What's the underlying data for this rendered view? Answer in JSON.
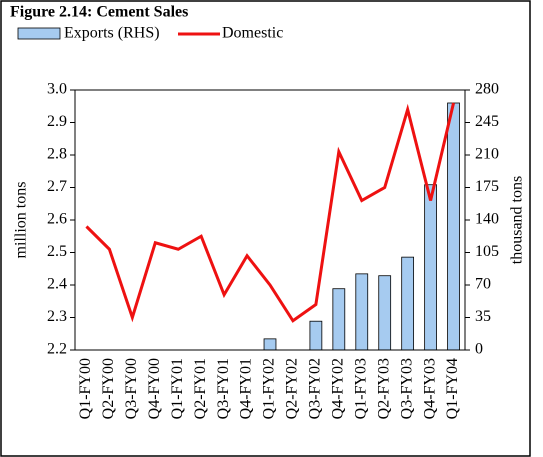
{
  "chart_data": {
    "type": "bar_line",
    "title": "Figure 2.14: Cement Sales",
    "y_label": "million tons",
    "y2_label": "thousand tons",
    "categories": [
      "Q1-FY00",
      "Q2-FY00",
      "Q3-FY00",
      "Q4-FY00",
      "Q1-FY01",
      "Q2-FY01",
      "Q3-FY01",
      "Q4-FY01",
      "Q1-FY02",
      "Q2-FY02",
      "Q3-FY02",
      "Q4-FY02",
      "Q1-FY03",
      "Q2-FY03",
      "Q3-FY03",
      "Q4-FY03",
      "Q1-FY04"
    ],
    "series": [
      {
        "name": "Exports (RHS)",
        "type": "bar",
        "axis": "y2",
        "color": "#a6cbf0",
        "values": [
          0,
          0,
          0,
          0,
          0,
          0,
          0,
          0,
          12,
          0,
          31,
          66,
          82,
          80,
          100,
          178,
          266
        ]
      },
      {
        "name": "Domestic",
        "type": "line",
        "color": "#ee1111",
        "values": [
          2.58,
          2.51,
          2.3,
          2.53,
          2.51,
          2.55,
          2.37,
          2.49,
          2.4,
          2.29,
          2.34,
          2.81,
          2.66,
          2.7,
          2.94,
          2.66,
          2.96
        ]
      }
    ],
    "ylim": [
      2.2,
      3.0
    ],
    "yticks": [
      2.2,
      2.3,
      2.4,
      2.5,
      2.6,
      2.7,
      2.8,
      2.9,
      {
        "value": 3.0,
        "label": "3.0"
      }
    ],
    "y2lim": [
      0,
      280
    ],
    "y2ticks": [
      0,
      35,
      70,
      105,
      140,
      175,
      210,
      245,
      280
    ]
  }
}
